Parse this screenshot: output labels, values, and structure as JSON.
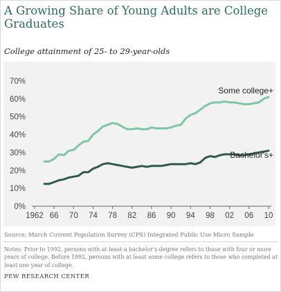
{
  "header": {
    "title": "A Growing Share of Young Adults are College Graduates",
    "subtitle": "College attainment of 25- to 29-year-olds"
  },
  "footer": {
    "source": "Source: March Current Population Survey (CPS) Integrated Public Use Micro Sample",
    "notes": "Notes: Prior to 1992, persons with at least a bachelor's degree refers to those with four or more years of college. Before 1992, persons with at least some college refers to those who completed at least one year of college.",
    "credit": "PEW RESEARCH CENTER"
  },
  "colors": {
    "title": "#2e6b5e",
    "some_college": "#7fc6a4",
    "bachelors": "#2d5a4b",
    "plot_background": "#f2f2f2"
  },
  "chart_data": {
    "type": "line",
    "title": "A Growing Share of Young Adults are College Graduates",
    "subtitle": "College attainment of 25- to 29-year-olds",
    "xlabel": "",
    "ylabel": "",
    "xlim": [
      1962,
      2010
    ],
    "ylim": [
      0,
      70
    ],
    "x_ticks": [
      1962,
      1966,
      1970,
      1974,
      1978,
      1982,
      1986,
      1990,
      1994,
      1998,
      2002,
      2006,
      2010
    ],
    "x_tick_labels": [
      "1962",
      "66",
      "70",
      "74",
      "78",
      "82",
      "86",
      "90",
      "94",
      "98",
      "02",
      "06",
      "10"
    ],
    "y_ticks": [
      0,
      10,
      20,
      30,
      40,
      50,
      60,
      70
    ],
    "y_tick_labels": [
      "0%",
      "10%",
      "20%",
      "30%",
      "40%",
      "50%",
      "60%",
      "70%"
    ],
    "grid": false,
    "x": [
      1964,
      1965,
      1966,
      1967,
      1968,
      1969,
      1970,
      1971,
      1972,
      1973,
      1974,
      1975,
      1976,
      1977,
      1978,
      1979,
      1980,
      1981,
      1982,
      1983,
      1984,
      1985,
      1986,
      1987,
      1988,
      1989,
      1990,
      1991,
      1992,
      1993,
      1994,
      1995,
      1996,
      1997,
      1998,
      1999,
      2000,
      2001,
      2002,
      2003,
      2004,
      2005,
      2006,
      2007,
      2008,
      2009,
      2010
    ],
    "series": [
      {
        "name": "Some college+",
        "color": "#7fc6a4",
        "values": [
          25,
          25,
          26.5,
          29,
          28.5,
          31,
          31.5,
          34,
          36,
          36.5,
          40,
          42,
          44.5,
          45.5,
          46.5,
          46,
          44.5,
          43,
          43,
          43.5,
          43,
          43,
          44,
          43.5,
          43.5,
          43.5,
          44,
          45,
          45.5,
          49,
          51,
          52,
          54,
          56,
          57.5,
          58,
          58,
          58.5,
          58,
          58,
          57.5,
          57,
          57,
          57.5,
          58,
          60,
          61
        ]
      },
      {
        "name": "Bachelor's+",
        "color": "#2d5a4b",
        "values": [
          12.5,
          12.5,
          13.5,
          14.5,
          15,
          16,
          16.5,
          17,
          19,
          19,
          21,
          22,
          23.5,
          24,
          23.5,
          23,
          22.5,
          22,
          21.5,
          22,
          22.5,
          22,
          22.5,
          22.5,
          22.5,
          23,
          23.5,
          23.5,
          23.5,
          23.5,
          24,
          23.5,
          24.5,
          27,
          28,
          27.5,
          28.5,
          29,
          29,
          29,
          28.5,
          28.5,
          29,
          29.5,
          30,
          30.5,
          31
        ]
      }
    ]
  }
}
